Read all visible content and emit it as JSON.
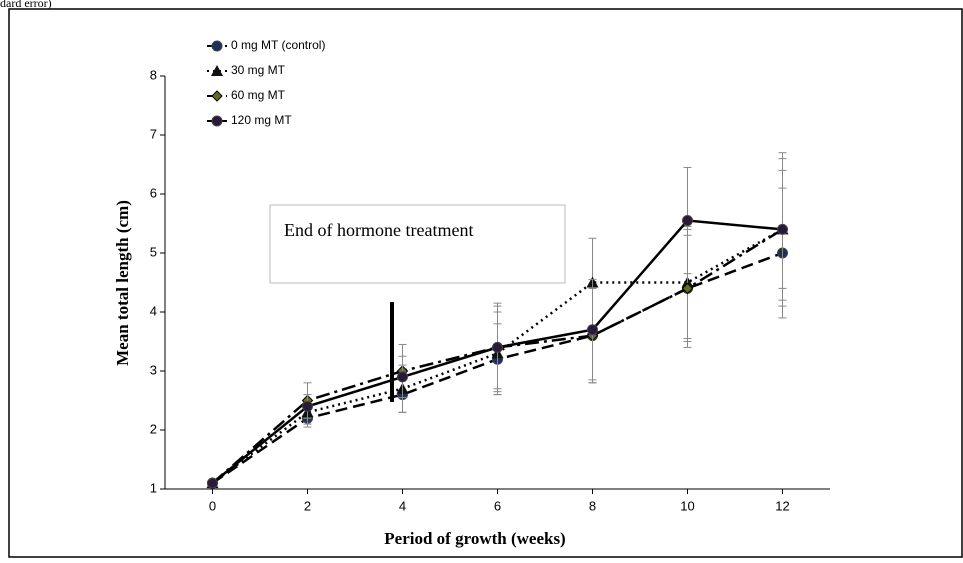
{
  "caption": "dard error)",
  "chart_data": {
    "type": "line",
    "xlabel": "Period of growth (weeks)",
    "ylabel": "Mean total length (cm)",
    "annotation": "End of hormone treatment",
    "x": [
      0,
      2,
      4,
      6,
      8,
      10,
      12
    ],
    "xlim": [
      -1,
      13
    ],
    "xticks": [
      0,
      2,
      4,
      6,
      8,
      10,
      12
    ],
    "ylim": [
      1,
      8
    ],
    "yticks": [
      1,
      2,
      3,
      4,
      5,
      6,
      7,
      8
    ],
    "legend": "upper left",
    "series": [
      {
        "name": "0 mg MT (control)",
        "color": "#1f2f5a",
        "marker": "circle",
        "line_style": "dashed",
        "values": [
          1.1,
          2.2,
          2.6,
          3.2,
          3.6,
          4.4,
          5.0
        ],
        "errors": [
          0,
          0.15,
          0.3,
          0.6,
          0.8,
          1.0,
          1.1
        ]
      },
      {
        "name": "30 mg MT",
        "color": "#111111",
        "marker": "triangle",
        "line_style": "dotted",
        "values": [
          1.1,
          2.3,
          2.7,
          3.3,
          4.5,
          4.5,
          5.4
        ],
        "errors": [
          0,
          0.2,
          0.4,
          0.7,
          0.75,
          0.95,
          1.2
        ]
      },
      {
        "name": "60 mg MT",
        "color": "#6b6b1e",
        "marker": "diamond",
        "line_style": "dashdot",
        "values": [
          1.1,
          2.5,
          3.0,
          3.4,
          3.6,
          4.4,
          5.4
        ],
        "errors": [
          0,
          0.3,
          0.45,
          0.7,
          0.8,
          0.9,
          1.0
        ]
      },
      {
        "name": "120 mg MT",
        "color": "#2a1a3a",
        "marker": "circle",
        "line_style": "solid",
        "values": [
          1.1,
          2.4,
          2.9,
          3.4,
          3.7,
          5.55,
          5.4
        ],
        "errors": [
          0,
          0.2,
          0.35,
          0.75,
          0.85,
          0.9,
          1.3
        ]
      }
    ]
  }
}
